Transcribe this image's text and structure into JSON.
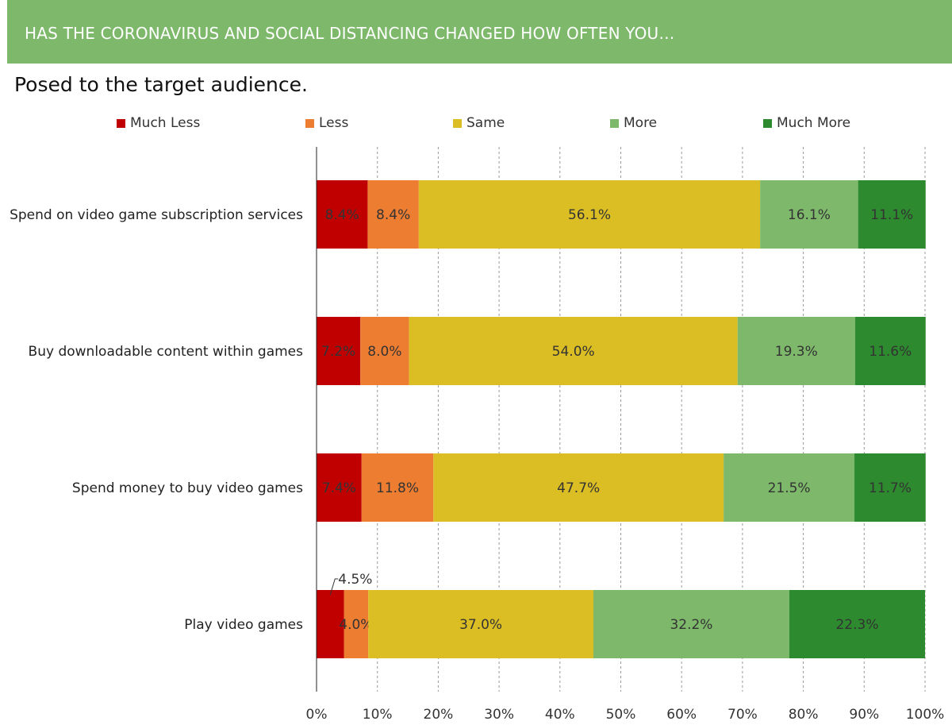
{
  "header": {
    "banner_title": "HAS THE CORONAVIRUS AND SOCIAL DISTANCING CHANGED HOW OFTEN YOU…",
    "subtitle": "Posed to the target audience.",
    "banner_color": "#7db86b"
  },
  "chart_data": {
    "type": "bar",
    "orientation": "horizontal",
    "stacked": "percent",
    "categories": [
      "Spend on video game subscription services",
      "Buy downloadable content within games",
      "Spend money to buy video games",
      "Play video games"
    ],
    "series": [
      {
        "name": "Much Less",
        "color": "#c00000",
        "values": [
          8.4,
          7.2,
          7.4,
          4.5
        ],
        "labels": [
          "8.4%",
          "7.2%",
          "7.4%",
          "4.5%"
        ]
      },
      {
        "name": "Less",
        "color": "#ed7d31",
        "values": [
          8.4,
          8.0,
          11.8,
          4.0
        ],
        "labels": [
          "8.4%",
          "8.0%",
          "11.8%",
          "4.0%"
        ]
      },
      {
        "name": "Same",
        "color": "#dbbd24",
        "values": [
          56.1,
          54.0,
          47.7,
          37.0
        ],
        "labels": [
          "56.1%",
          "54.0%",
          "47.7%",
          "37.0%"
        ]
      },
      {
        "name": "More",
        "color": "#7db86b",
        "values": [
          16.1,
          19.3,
          21.5,
          32.2
        ],
        "labels": [
          "16.1%",
          "19.3%",
          "21.5%",
          "32.2%"
        ]
      },
      {
        "name": "Much More",
        "color": "#2d8a2e",
        "values": [
          11.1,
          11.6,
          11.7,
          22.3
        ],
        "labels": [
          "11.1%",
          "11.6%",
          "11.7%",
          "22.3%"
        ]
      }
    ],
    "xticks": [
      "0%",
      "10%",
      "20%",
      "30%",
      "40%",
      "50%",
      "60%",
      "70%",
      "80%",
      "90%",
      "100%"
    ],
    "xlim": [
      0,
      100
    ],
    "grid": "vertical dashed",
    "legend_position": "top"
  }
}
